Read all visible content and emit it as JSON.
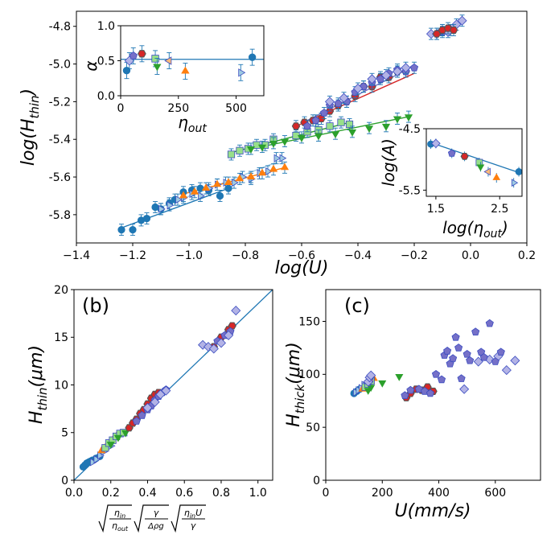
{
  "chart_data": [
    {
      "id": "main",
      "type": "scatter",
      "xlabel": "log(U)",
      "ylabel": "log(H_thin)",
      "xlim": [
        -1.4,
        0.2
      ],
      "ylim": [
        -5.95,
        -4.72
      ],
      "xticks": [
        -1.4,
        -1.2,
        -1.0,
        -0.8,
        -0.6,
        -0.4,
        -0.2,
        0.0,
        0.2
      ],
      "xtick_labels": [
        "−1.4",
        "−1.2",
        "−1.0",
        "−0.8",
        "−0.6",
        "−0.4",
        "−0.2",
        "0.0",
        "0.2"
      ],
      "yticks": [
        -5.8,
        -5.6,
        -5.4,
        -5.2,
        -5.0,
        -4.8
      ],
      "ytick_labels": [
        "-5.8",
        "-5.6",
        "-5.4",
        "-5.2",
        "-5.0",
        "-4.8"
      ],
      "series": [
        {
          "name": "blue circles",
          "marker": "circle",
          "color": "#1f77b4",
          "x": [
            -1.24,
            -1.2,
            -1.17,
            -1.15,
            -1.12,
            -1.1,
            -1.07,
            -1.05,
            -1.02,
            -0.99,
            -0.96,
            -0.93,
            -0.89,
            -0.86
          ],
          "y": [
            -5.88,
            -5.88,
            -5.83,
            -5.82,
            -5.76,
            -5.77,
            -5.74,
            -5.72,
            -5.68,
            -5.67,
            -5.66,
            -5.67,
            -5.7,
            -5.66
          ],
          "fit": [
            [
              -1.24,
              -5.87
            ],
            [
              -0.86,
              -5.66
            ]
          ]
        },
        {
          "name": "light blue right triangles",
          "marker": "tri-right",
          "color": "#9ecae1",
          "x": [
            -1.1,
            -1.07,
            -1.04,
            -1.02,
            -0.99,
            -0.96,
            -0.93,
            -0.9,
            -0.87,
            -0.84,
            -0.81,
            -0.78,
            -0.75,
            -0.72,
            -0.69,
            -0.67
          ],
          "y": [
            -5.77,
            -5.75,
            -5.72,
            -5.71,
            -5.69,
            -5.7,
            -5.66,
            -5.64,
            -5.63,
            -5.63,
            -5.6,
            -5.61,
            -5.58,
            -5.57,
            -5.5,
            -5.5
          ],
          "fit": [
            [
              -1.1,
              -5.76
            ],
            [
              -0.67,
              -5.51
            ]
          ]
        },
        {
          "name": "orange triangles",
          "marker": "tri-up",
          "color": "#ff7f0e",
          "x": [
            -1.02,
            -0.98,
            -0.94,
            -0.9,
            -0.86,
            -0.82,
            -0.78,
            -0.74,
            -0.7,
            -0.66
          ],
          "y": [
            -5.7,
            -5.68,
            -5.66,
            -5.64,
            -5.63,
            -5.61,
            -5.6,
            -5.58,
            -5.56,
            -5.55
          ],
          "fit": [
            [
              -1.02,
              -5.69
            ],
            [
              -0.66,
              -5.55
            ]
          ]
        },
        {
          "name": "light green squares",
          "marker": "square",
          "color": "#98df8a",
          "x": [
            -0.85,
            -0.82,
            -0.79,
            -0.76,
            -0.73,
            -0.7,
            -0.62,
            -0.58,
            -0.54,
            -0.5,
            -0.46,
            -0.43
          ],
          "y": [
            -5.48,
            -5.46,
            -5.45,
            -5.43,
            -5.43,
            -5.4,
            -5.38,
            -5.36,
            -5.35,
            -5.33,
            -5.31,
            -5.32
          ],
          "fit": [
            [
              -0.85,
              -5.47
            ],
            [
              -0.43,
              -5.31
            ]
          ]
        },
        {
          "name": "green down triangles",
          "marker": "tri-down",
          "color": "#2ca02c",
          "x": [
            -0.78,
            -0.74,
            -0.7,
            -0.66,
            -0.6,
            -0.54,
            -0.48,
            -0.42,
            -0.36,
            -0.3,
            -0.26,
            -0.22
          ],
          "y": [
            -5.45,
            -5.44,
            -5.42,
            -5.41,
            -5.39,
            -5.38,
            -5.37,
            -5.36,
            -5.34,
            -5.33,
            -5.29,
            -5.28
          ],
          "fit": [
            [
              -0.78,
              -5.45
            ],
            [
              -0.22,
              -5.28
            ]
          ]
        },
        {
          "name": "red hexagons",
          "marker": "hexagon",
          "color": "#d62728",
          "x": [
            -0.62,
            -0.59,
            -0.56,
            -0.53,
            -0.5,
            -0.47,
            -0.44,
            -0.41,
            -0.38,
            -0.35,
            -0.32,
            -0.29,
            -0.26,
            -0.23
          ],
          "y": [
            -5.33,
            -5.31,
            -5.3,
            -5.29,
            -5.25,
            -5.22,
            -5.2,
            -5.17,
            -5.12,
            -5.12,
            -5.07,
            -5.07,
            -5.04,
            -5.04
          ],
          "fit": [
            [
              -0.62,
              -5.33
            ],
            [
              -0.2,
              -5.05
            ]
          ]
        },
        {
          "name": "purple pentagons",
          "marker": "pentagon",
          "color": "#7570c8",
          "x": [
            -0.58,
            -0.55,
            -0.52,
            -0.5,
            -0.47,
            -0.44,
            -0.41,
            -0.38,
            -0.35,
            -0.32,
            -0.29,
            -0.26,
            -0.23,
            -0.2,
            -0.1,
            -0.07
          ],
          "y": [
            -5.33,
            -5.3,
            -5.26,
            -5.22,
            -5.21,
            -5.2,
            -5.15,
            -5.12,
            -5.1,
            -5.08,
            -5.05,
            -5.03,
            -5.04,
            -5.02,
            -4.83,
            -4.82
          ],
          "fit": [
            [
              -0.58,
              -5.3
            ],
            [
              -0.2,
              -5.01
            ]
          ]
        },
        {
          "name": "lavender diamonds",
          "marker": "diamond",
          "color": "#b3b3e6",
          "x": [
            -0.5,
            -0.45,
            -0.4,
            -0.35,
            -0.3,
            -0.26,
            -0.23,
            -0.14,
            -0.12,
            -0.1,
            -0.08,
            -0.05,
            -0.03
          ],
          "y": [
            -5.2,
            -5.18,
            -5.13,
            -5.08,
            -5.06,
            -5.04,
            -5.02,
            -4.84,
            -4.84,
            -4.82,
            -4.83,
            -4.79,
            -4.77
          ],
          "fit": [
            [
              -0.14,
              -4.85
            ],
            [
              -0.03,
              -4.77
            ]
          ]
        },
        {
          "name": "dark red hexagons high",
          "marker": "hexagon",
          "color": "#d62728",
          "x": [
            -0.12,
            -0.1,
            -0.08,
            -0.06
          ],
          "y": [
            -4.84,
            -4.82,
            -4.81,
            -4.82
          ],
          "fit": []
        }
      ]
    },
    {
      "id": "inset_alpha",
      "type": "scatter",
      "xlabel": "η_out",
      "ylabel": "α",
      "xlim": [
        0,
        620
      ],
      "ylim": [
        0.0,
        1.0
      ],
      "xticks": [
        0,
        250,
        500
      ],
      "xtick_labels": [
        "0",
        "250",
        "500"
      ],
      "yticks": [
        0.0,
        0.5,
        1.0
      ],
      "ytick_labels": [
        "0.0",
        "0.5",
        "1.0"
      ],
      "hline": 0.52,
      "points": [
        {
          "x": 26,
          "y": 0.36,
          "marker": "circle",
          "color": "#1f77b4"
        },
        {
          "x": 38,
          "y": 0.5,
          "marker": "diamond",
          "color": "#b3b3e6"
        },
        {
          "x": 55,
          "y": 0.57,
          "marker": "pentagon",
          "color": "#7570c8"
        },
        {
          "x": 92,
          "y": 0.6,
          "marker": "hexagon",
          "color": "#d62728"
        },
        {
          "x": 150,
          "y": 0.53,
          "marker": "square",
          "color": "#98df8a"
        },
        {
          "x": 158,
          "y": 0.42,
          "marker": "tri-down",
          "color": "#2ca02c"
        },
        {
          "x": 210,
          "y": 0.5,
          "marker": "tri-left",
          "color": "#ffbb78"
        },
        {
          "x": 280,
          "y": 0.35,
          "marker": "tri-up",
          "color": "#ff7f0e"
        },
        {
          "x": 520,
          "y": 0.33,
          "marker": "tri-right",
          "color": "#9ecae1"
        },
        {
          "x": 570,
          "y": 0.55,
          "marker": "circle",
          "color": "#1f77b4"
        }
      ]
    },
    {
      "id": "inset_A",
      "type": "scatter",
      "xlabel": "log(η_out)",
      "ylabel": "log(A)",
      "xlim": [
        1.35,
        2.85
      ],
      "ylim": [
        -5.6,
        -4.5
      ],
      "xticks": [
        1.5,
        2.5
      ],
      "xtick_labels": [
        "1.5",
        "2.5"
      ],
      "yticks": [
        -4.5,
        -5.5
      ],
      "ytick_labels": [
        "-4.5",
        "-5.5"
      ],
      "fit": [
        [
          1.4,
          -4.72
        ],
        [
          2.82,
          -5.22
        ]
      ],
      "points": [
        {
          "x": 1.42,
          "y": -4.75,
          "marker": "circle",
          "color": "#1f77b4"
        },
        {
          "x": 1.5,
          "y": -4.74,
          "marker": "diamond",
          "color": "#b3b3e6"
        },
        {
          "x": 1.75,
          "y": -4.9,
          "marker": "pentagon",
          "color": "#7570c8"
        },
        {
          "x": 1.95,
          "y": -4.95,
          "marker": "hexagon",
          "color": "#d62728"
        },
        {
          "x": 2.18,
          "y": -5.05,
          "marker": "square",
          "color": "#98df8a"
        },
        {
          "x": 2.2,
          "y": -5.12,
          "marker": "tri-down",
          "color": "#2ca02c"
        },
        {
          "x": 2.32,
          "y": -5.2,
          "marker": "tri-left",
          "color": "#ffbb78"
        },
        {
          "x": 2.45,
          "y": -5.3,
          "marker": "tri-up",
          "color": "#ff7f0e"
        },
        {
          "x": 2.72,
          "y": -5.38,
          "marker": "tri-right",
          "color": "#9ecae1"
        },
        {
          "x": 2.8,
          "y": -5.2,
          "marker": "circle",
          "color": "#1f77b4"
        }
      ]
    },
    {
      "id": "panel_b",
      "label": "(b)",
      "type": "scatter",
      "xlabel": "√(ηin/ηout) √(γ/Δρg) √(ηinU/γ)",
      "ylabel": "H_thin(μm)",
      "xlim": [
        0.0,
        1.08
      ],
      "ylim": [
        0,
        20
      ],
      "xticks": [
        0.0,
        0.2,
        0.4,
        0.6,
        0.8,
        1.0
      ],
      "xtick_labels": [
        "0.0",
        "0.2",
        "0.4",
        "0.6",
        "0.8",
        "1.0"
      ],
      "yticks": [
        0,
        5,
        10,
        15,
        20
      ],
      "ytick_labels": [
        "0",
        "5",
        "10",
        "15",
        "20"
      ],
      "diagonal": [
        [
          0.0,
          0.0
        ],
        [
          1.08,
          20.0
        ]
      ],
      "series": [
        {
          "marker": "circle",
          "color": "#1f77b4",
          "x": [
            0.05,
            0.06,
            0.07,
            0.08,
            0.09,
            0.1,
            0.12,
            0.14
          ],
          "y": [
            1.4,
            1.6,
            1.8,
            1.9,
            2.0,
            2.1,
            2.3,
            2.5
          ]
        },
        {
          "marker": "tri-right",
          "color": "#9ecae1",
          "x": [
            0.1,
            0.12,
            0.14,
            0.16,
            0.18,
            0.2
          ],
          "y": [
            1.9,
            2.2,
            2.6,
            3.0,
            3.4,
            3.6
          ]
        },
        {
          "marker": "tri-up",
          "color": "#ff7f0e",
          "x": [
            0.15,
            0.17,
            0.19,
            0.21,
            0.23
          ],
          "y": [
            3.1,
            3.4,
            3.8,
            4.2,
            4.6
          ]
        },
        {
          "marker": "square",
          "color": "#98df8a",
          "x": [
            0.17,
            0.19,
            0.21,
            0.23,
            0.25,
            0.27
          ],
          "y": [
            3.4,
            3.9,
            4.2,
            4.6,
            4.9,
            5.0
          ]
        },
        {
          "marker": "tri-down",
          "color": "#2ca02c",
          "x": [
            0.2,
            0.24,
            0.28
          ],
          "y": [
            3.8,
            4.5,
            5.0
          ]
        },
        {
          "marker": "hexagon",
          "color": "#d62728",
          "x": [
            0.3,
            0.32,
            0.34,
            0.36,
            0.38,
            0.4,
            0.42,
            0.44,
            0.46,
            0.76,
            0.8,
            0.84,
            0.86
          ],
          "y": [
            5.5,
            6.0,
            6.4,
            7.0,
            7.4,
            8.0,
            8.6,
            9.0,
            9.2,
            14.0,
            15.0,
            15.8,
            16.2
          ]
        },
        {
          "marker": "pentagon",
          "color": "#7570c8",
          "x": [
            0.34,
            0.37,
            0.4,
            0.42,
            0.44,
            0.46,
            0.48,
            0.5,
            0.78,
            0.82,
            0.85
          ],
          "y": [
            6.2,
            6.8,
            7.4,
            7.8,
            8.4,
            8.8,
            9.2,
            9.5,
            14.6,
            15.2,
            15.6
          ]
        },
        {
          "marker": "diamond",
          "color": "#b3b3e6",
          "x": [
            0.4,
            0.44,
            0.47,
            0.5,
            0.7,
            0.73,
            0.76,
            0.8,
            0.84,
            0.88
          ],
          "y": [
            7.6,
            8.2,
            9.0,
            9.4,
            14.2,
            14.0,
            13.8,
            14.4,
            15.2,
            17.8
          ]
        }
      ]
    },
    {
      "id": "panel_c",
      "label": "(c)",
      "type": "scatter",
      "xlabel": "U(mm/s)",
      "ylabel": "H_thick(μm)",
      "xlim": [
        0,
        760
      ],
      "ylim": [
        0,
        180
      ],
      "xticks": [
        0,
        200,
        400,
        600
      ],
      "xtick_labels": [
        "0",
        "200",
        "400",
        "600"
      ],
      "yticks": [
        0,
        50,
        100,
        150
      ],
      "ytick_labels": [
        "0",
        "50",
        "100",
        "150"
      ],
      "series": [
        {
          "marker": "circle",
          "color": "#1f77b4",
          "x": [
            100,
            110,
            120
          ],
          "y": [
            82,
            84,
            86
          ]
        },
        {
          "marker": "tri-right",
          "color": "#9ecae1",
          "x": [
            105,
            115,
            125,
            135
          ],
          "y": [
            83,
            85,
            87,
            90
          ]
        },
        {
          "marker": "tri-up",
          "color": "#ff7f0e",
          "x": [
            130,
            140,
            150,
            160,
            170
          ],
          "y": [
            86,
            88,
            90,
            93,
            96
          ]
        },
        {
          "marker": "square",
          "color": "#98df8a",
          "x": [
            140,
            150,
            160
          ],
          "y": [
            88,
            91,
            94
          ]
        },
        {
          "marker": "tri-down",
          "color": "#2ca02c",
          "x": [
            150,
            160,
            200,
            260
          ],
          "y": [
            85,
            88,
            92,
            98
          ]
        },
        {
          "marker": "tri-left",
          "color": "#ffbb78",
          "x": [
            150,
            160
          ],
          "y": [
            92,
            96
          ]
        },
        {
          "marker": "diamond",
          "color": "#b3b3e6",
          "x": [
            150,
            155,
            160,
            490,
            540,
            580,
            610,
            640,
            670
          ],
          "y": [
            93,
            97,
            99,
            86,
            112,
            114,
            117,
            104,
            113
          ]
        },
        {
          "marker": "hexagon",
          "color": "#d62728",
          "x": [
            285,
            300,
            320,
            340,
            360,
            380
          ],
          "y": [
            78,
            82,
            86,
            85,
            88,
            84
          ]
        },
        {
          "marker": "pentagon",
          "color": "#7570c8",
          "x": [
            280,
            300,
            330,
            350,
            370,
            390,
            410,
            420,
            430,
            440,
            450,
            460,
            470,
            480,
            500,
            510,
            530,
            550,
            560,
            580,
            600,
            620
          ],
          "y": [
            80,
            85,
            86,
            84,
            82,
            100,
            95,
            118,
            122,
            110,
            115,
            135,
            125,
            96,
            119,
            113,
            140,
            121,
            116,
            148,
            112,
            121
          ]
        }
      ]
    }
  ]
}
